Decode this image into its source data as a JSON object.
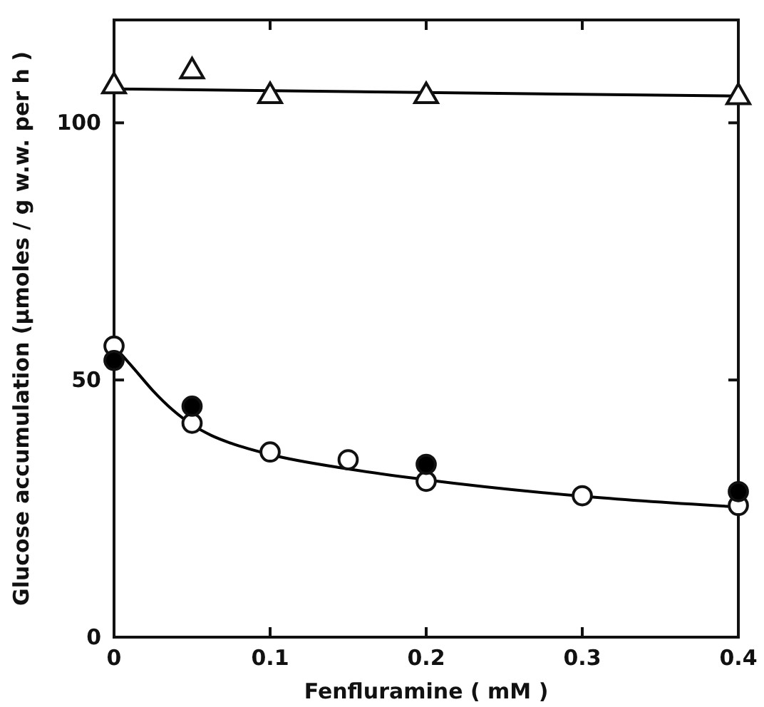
{
  "chart_data": {
    "type": "scatter",
    "xlabel": "Fenfluramine ( mM )",
    "ylabel": "Glucose accumulation (µmoles / g w.w. per h )",
    "xlim": [
      0,
      0.4
    ],
    "ylim": [
      0,
      120
    ],
    "xticks": [
      0,
      0.1,
      0.2,
      0.3,
      0.4
    ],
    "yticks": [
      0,
      50,
      100
    ],
    "grid": false,
    "series": [
      {
        "type": "line",
        "color": "#000000",
        "marker": "none",
        "line_style": "solid",
        "x": [
          0,
          0.4
        ],
        "values": [
          106.6,
          105.2
        ]
      },
      {
        "type": "line",
        "color": "#000000",
        "marker": "none",
        "line_style": "solid",
        "x": [
          0,
          0.0125,
          0.025,
          0.0375,
          0.05,
          0.0625,
          0.075,
          0.1,
          0.15,
          0.2,
          0.3,
          0.4
        ],
        "values": [
          56.6,
          52.3,
          47.9,
          44.2,
          41.3,
          39.2,
          37.7,
          35.5,
          32.7,
          30.6,
          27.4,
          25.3
        ]
      },
      {
        "color": "#ffffff",
        "marker": "triangle",
        "x": [
          0,
          0.05,
          0.1,
          0.2,
          0.4
        ],
        "values": [
          107.1,
          110,
          105.2,
          105.2,
          105
        ]
      },
      {
        "color": "#ffffff",
        "marker": "circle",
        "x": [
          0,
          0.05,
          0.1,
          0.15,
          0.2,
          0.3,
          0.4
        ],
        "values": [
          56.6,
          41.6,
          36.0,
          34.5,
          30.3,
          27.5,
          25.6
        ]
      },
      {
        "color": "#000000",
        "marker": "circle",
        "x": [
          0,
          0.05,
          0.2,
          0.4
        ],
        "values": [
          53.8,
          44.9,
          33.6,
          28.3
        ]
      }
    ]
  }
}
